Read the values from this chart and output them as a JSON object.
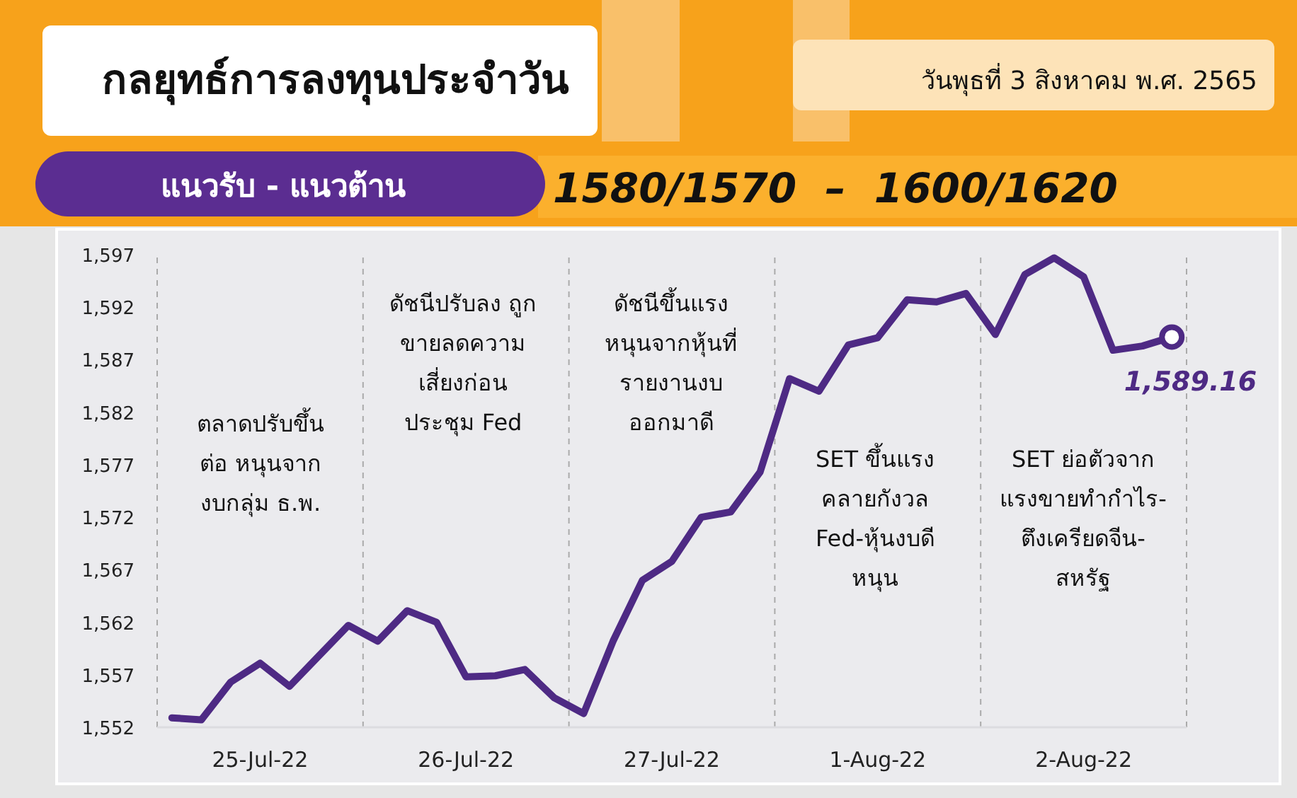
{
  "chart_data": {
    "type": "line",
    "title": "กลยุทธ์การลงทุนประจำวัน",
    "subtitle": "วันพุธที่ 3 สิงหาคม พ.ศ. 2565",
    "annotations": [
      "แนวรับ - แนวต้าน",
      "1580/1570  –  1600/1620",
      "ตลาดปรับขึ้น\nต่อ หนุนจาก\nงบกลุ่ม ธ.พ.",
      "ดัชนีปรับลง ถูก\nขายลดความ\nเสี่ยงก่อน\nประชุม Fed",
      "ดัชนีขึ้นแรง\nหนุนจากหุ้นที่\nรายงานงบ\nออกมาดี",
      "SET ขึ้นแรง\nคลายกังวล\nFed-หุ้นงบดี\nหนุน",
      "SET ย่อตัวจาก\nแรงขายทำกำไร-\nตึงเครียดจีน-\nสหรัฐ"
    ],
    "categories": [
      null,
      null,
      null,
      "25-Jul-22",
      null,
      null,
      null,
      null,
      null,
      null,
      "26-Jul-22",
      null,
      null,
      null,
      null,
      null,
      null,
      "27-Jul-22",
      null,
      null,
      null,
      null,
      null,
      null,
      "1-Aug-22",
      null,
      null,
      null,
      null,
      null,
      null,
      "2-Aug-22",
      null,
      null,
      null
    ],
    "series": [
      {
        "color": "#4e2a84",
        "values": [
          1552.9,
          1552.7,
          1556.3,
          1558.1,
          1555.9,
          1558.8,
          1561.7,
          1560.2,
          1563.1,
          1562.0,
          1556.8,
          1556.9,
          1557.5,
          1554.8,
          1553.3,
          1560.2,
          1566.0,
          1567.8,
          1572.0,
          1572.5,
          1576.3,
          1585.2,
          1584.0,
          1588.4,
          1589.1,
          1592.7,
          1592.5,
          1593.3,
          1589.4,
          1595.1,
          1596.7,
          1594.9,
          1587.9,
          1588.3,
          1589.16
        ],
        "value_labels": [
          null,
          null,
          null,
          null,
          null,
          null,
          null,
          null,
          null,
          null,
          null,
          null,
          null,
          null,
          null,
          null,
          null,
          null,
          null,
          null,
          null,
          null,
          null,
          null,
          null,
          null,
          null,
          null,
          null,
          null,
          null,
          null,
          null,
          null,
          "1,589.16"
        ]
      }
    ],
    "ylim": [
      1552,
      1597
    ],
    "yticks": [
      {
        "value": 1552,
        "label": "1,552"
      },
      {
        "value": 1557,
        "label": "1,557"
      },
      {
        "value": 1562,
        "label": "1,562"
      },
      {
        "value": 1567,
        "label": "1,567"
      },
      {
        "value": 1572,
        "label": "1,572"
      },
      {
        "value": 1577,
        "label": "1,577"
      },
      {
        "value": 1582,
        "label": "1,582"
      },
      {
        "value": 1587,
        "label": "1,587"
      },
      {
        "value": 1592,
        "label": "1,592"
      },
      {
        "value": 1597,
        "label": "1,597"
      }
    ],
    "line_style": "solid"
  }
}
